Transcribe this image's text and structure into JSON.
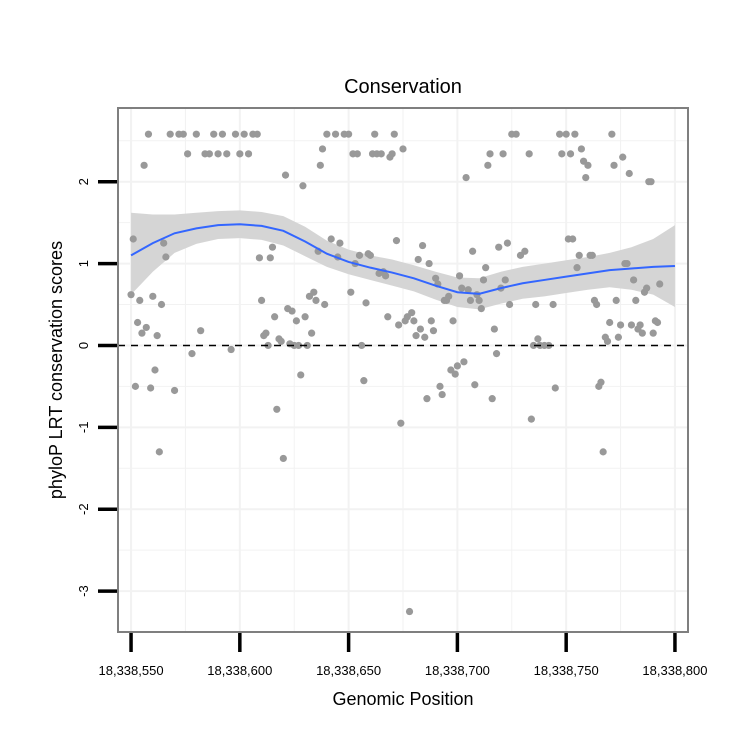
{
  "chart_data": {
    "type": "scatter",
    "title": "Conservation",
    "xlabel": "Genomic Position",
    "ylabel": "phyloP LRT conservation scores",
    "xlim": [
      18338544,
      18338806
    ],
    "ylim": [
      -3.5,
      2.9
    ],
    "x_ticks": [
      18338550,
      18338600,
      18338650,
      18338700,
      18338750,
      18338800
    ],
    "x_tick_labels": [
      "18,338,550",
      "18,338,600",
      "18,338,650",
      "18,338,700",
      "18,338,750",
      "18,338,800"
    ],
    "y_ticks": [
      -3,
      -2,
      -1,
      0,
      1,
      2
    ],
    "y_tick_labels": [
      "-3",
      "-2",
      "-1",
      "0",
      "1",
      "2"
    ],
    "reference_line_y": 0,
    "colors": {
      "points": "#999999",
      "smooth": "#3366ff",
      "band": "#d3d3d3",
      "grid": "#f2f2f2",
      "panel_border": "#7f7f7f",
      "reference_line": "#000000"
    },
    "points": [
      [
        18338550,
        0.62
      ],
      [
        18338551,
        1.3
      ],
      [
        18338552,
        -0.5
      ],
      [
        18338553,
        0.28
      ],
      [
        18338554,
        0.55
      ],
      [
        18338555,
        0.15
      ],
      [
        18338556,
        2.2
      ],
      [
        18338557,
        0.22
      ],
      [
        18338558,
        2.58
      ],
      [
        18338559,
        -0.52
      ],
      [
        18338560,
        0.6
      ],
      [
        18338561,
        -0.3
      ],
      [
        18338562,
        0.12
      ],
      [
        18338563,
        -1.3
      ],
      [
        18338564,
        0.5
      ],
      [
        18338565,
        1.25
      ],
      [
        18338566,
        1.08
      ],
      [
        18338568,
        2.58
      ],
      [
        18338570,
        -0.55
      ],
      [
        18338572,
        2.58
      ],
      [
        18338574,
        2.58
      ],
      [
        18338576,
        2.34
      ],
      [
        18338578,
        -0.1
      ],
      [
        18338580,
        2.58
      ],
      [
        18338582,
        0.18
      ],
      [
        18338584,
        2.34
      ],
      [
        18338586,
        2.34
      ],
      [
        18338588,
        2.58
      ],
      [
        18338590,
        2.34
      ],
      [
        18338592,
        2.58
      ],
      [
        18338594,
        2.34
      ],
      [
        18338596,
        -0.05
      ],
      [
        18338598,
        2.58
      ],
      [
        18338600,
        2.34
      ],
      [
        18338602,
        2.58
      ],
      [
        18338604,
        2.34
      ],
      [
        18338606,
        2.58
      ],
      [
        18338608,
        2.58
      ],
      [
        18338609,
        1.07
      ],
      [
        18338610,
        0.55
      ],
      [
        18338611,
        0.12
      ],
      [
        18338612,
        0.15
      ],
      [
        18338613,
        0.0
      ],
      [
        18338614,
        1.07
      ],
      [
        18338615,
        1.2
      ],
      [
        18338616,
        0.35
      ],
      [
        18338617,
        -0.78
      ],
      [
        18338618,
        0.08
      ],
      [
        18338619,
        0.05
      ],
      [
        18338620,
        -1.38
      ],
      [
        18338621,
        2.08
      ],
      [
        18338622,
        0.45
      ],
      [
        18338623,
        0.02
      ],
      [
        18338624,
        0.42
      ],
      [
        18338625,
        0.0
      ],
      [
        18338626,
        0.3
      ],
      [
        18338627,
        0.0
      ],
      [
        18338628,
        -0.36
      ],
      [
        18338629,
        1.95
      ],
      [
        18338630,
        0.35
      ],
      [
        18338631,
        0.0
      ],
      [
        18338632,
        0.6
      ],
      [
        18338633,
        0.15
      ],
      [
        18338634,
        0.65
      ],
      [
        18338635,
        0.55
      ],
      [
        18338636,
        1.15
      ],
      [
        18338637,
        2.2
      ],
      [
        18338638,
        2.4
      ],
      [
        18338639,
        0.5
      ],
      [
        18338640,
        2.58
      ],
      [
        18338642,
        1.3
      ],
      [
        18338644,
        2.58
      ],
      [
        18338645,
        1.08
      ],
      [
        18338646,
        1.25
      ],
      [
        18338648,
        2.58
      ],
      [
        18338650,
        2.58
      ],
      [
        18338651,
        0.65
      ],
      [
        18338652,
        2.34
      ],
      [
        18338653,
        1.0
      ],
      [
        18338654,
        2.34
      ],
      [
        18338655,
        1.1
      ],
      [
        18338656,
        0.0
      ],
      [
        18338657,
        -0.43
      ],
      [
        18338658,
        0.52
      ],
      [
        18338659,
        1.12
      ],
      [
        18338660,
        1.1
      ],
      [
        18338661,
        2.34
      ],
      [
        18338662,
        2.58
      ],
      [
        18338663,
        2.34
      ],
      [
        18338664,
        0.88
      ],
      [
        18338665,
        2.34
      ],
      [
        18338666,
        0.9
      ],
      [
        18338667,
        0.85
      ],
      [
        18338668,
        0.35
      ],
      [
        18338669,
        2.3
      ],
      [
        18338670,
        2.34
      ],
      [
        18338671,
        2.58
      ],
      [
        18338672,
        1.28
      ],
      [
        18338673,
        0.25
      ],
      [
        18338674,
        -0.95
      ],
      [
        18338675,
        2.4
      ],
      [
        18338676,
        0.3
      ],
      [
        18338677,
        0.35
      ],
      [
        18338678,
        -3.25
      ],
      [
        18338679,
        0.4
      ],
      [
        18338680,
        0.3
      ],
      [
        18338681,
        0.12
      ],
      [
        18338682,
        1.05
      ],
      [
        18338683,
        0.2
      ],
      [
        18338684,
        1.22
      ],
      [
        18338685,
        0.1
      ],
      [
        18338686,
        -0.65
      ],
      [
        18338687,
        1.0
      ],
      [
        18338688,
        0.3
      ],
      [
        18338689,
        0.18
      ],
      [
        18338690,
        0.82
      ],
      [
        18338691,
        0.75
      ],
      [
        18338692,
        -0.5
      ],
      [
        18338693,
        -0.6
      ],
      [
        18338694,
        0.55
      ],
      [
        18338695,
        0.55
      ],
      [
        18338696,
        0.6
      ],
      [
        18338697,
        -0.3
      ],
      [
        18338698,
        0.3
      ],
      [
        18338699,
        -0.35
      ],
      [
        18338700,
        -0.25
      ],
      [
        18338701,
        0.85
      ],
      [
        18338702,
        0.7
      ],
      [
        18338703,
        -0.2
      ],
      [
        18338704,
        2.05
      ],
      [
        18338705,
        0.68
      ],
      [
        18338706,
        0.55
      ],
      [
        18338707,
        1.15
      ],
      [
        18338708,
        -0.48
      ],
      [
        18338709,
        0.62
      ],
      [
        18338710,
        0.55
      ],
      [
        18338711,
        0.45
      ],
      [
        18338712,
        0.8
      ],
      [
        18338713,
        0.95
      ],
      [
        18338714,
        2.2
      ],
      [
        18338715,
        2.34
      ],
      [
        18338716,
        -0.65
      ],
      [
        18338717,
        0.2
      ],
      [
        18338718,
        -0.1
      ],
      [
        18338719,
        1.2
      ],
      [
        18338720,
        0.7
      ],
      [
        18338721,
        2.34
      ],
      [
        18338722,
        0.8
      ],
      [
        18338723,
        1.25
      ],
      [
        18338724,
        0.5
      ],
      [
        18338725,
        2.58
      ],
      [
        18338727,
        2.58
      ],
      [
        18338729,
        1.1
      ],
      [
        18338731,
        1.15
      ],
      [
        18338733,
        2.34
      ],
      [
        18338734,
        -0.9
      ],
      [
        18338735,
        0.0
      ],
      [
        18338736,
        0.5
      ],
      [
        18338737,
        0.08
      ],
      [
        18338738,
        0.0
      ],
      [
        18338740,
        0.0
      ],
      [
        18338742,
        0.0
      ],
      [
        18338744,
        0.5
      ],
      [
        18338745,
        -0.52
      ],
      [
        18338747,
        2.58
      ],
      [
        18338748,
        2.34
      ],
      [
        18338750,
        2.58
      ],
      [
        18338751,
        1.3
      ],
      [
        18338752,
        2.34
      ],
      [
        18338753,
        1.3
      ],
      [
        18338754,
        2.58
      ],
      [
        18338755,
        0.95
      ],
      [
        18338756,
        1.1
      ],
      [
        18338757,
        2.4
      ],
      [
        18338758,
        2.25
      ],
      [
        18338759,
        2.05
      ],
      [
        18338760,
        2.2
      ],
      [
        18338761,
        1.1
      ],
      [
        18338762,
        1.1
      ],
      [
        18338763,
        0.55
      ],
      [
        18338764,
        0.5
      ],
      [
        18338765,
        -0.5
      ],
      [
        18338766,
        -0.45
      ],
      [
        18338767,
        -1.3
      ],
      [
        18338768,
        0.1
      ],
      [
        18338769,
        0.05
      ],
      [
        18338770,
        0.28
      ],
      [
        18338771,
        2.58
      ],
      [
        18338772,
        2.2
      ],
      [
        18338773,
        0.55
      ],
      [
        18338774,
        0.1
      ],
      [
        18338775,
        0.25
      ],
      [
        18338776,
        2.3
      ],
      [
        18338777,
        1.0
      ],
      [
        18338778,
        1.0
      ],
      [
        18338779,
        2.1
      ],
      [
        18338780,
        0.25
      ],
      [
        18338781,
        0.8
      ],
      [
        18338782,
        0.55
      ],
      [
        18338783,
        0.2
      ],
      [
        18338784,
        0.25
      ],
      [
        18338785,
        0.15
      ],
      [
        18338786,
        0.65
      ],
      [
        18338787,
        0.7
      ],
      [
        18338788,
        2.0
      ],
      [
        18338789,
        2.0
      ],
      [
        18338790,
        0.15
      ],
      [
        18338791,
        0.3
      ],
      [
        18338792,
        0.28
      ],
      [
        18338793,
        0.75
      ]
    ],
    "smooth": [
      [
        18338550,
        1.1
      ],
      [
        18338560,
        1.25
      ],
      [
        18338570,
        1.37
      ],
      [
        18338580,
        1.43
      ],
      [
        18338590,
        1.47
      ],
      [
        18338600,
        1.48
      ],
      [
        18338610,
        1.46
      ],
      [
        18338620,
        1.4
      ],
      [
        18338630,
        1.27
      ],
      [
        18338640,
        1.12
      ],
      [
        18338650,
        1.02
      ],
      [
        18338660,
        0.95
      ],
      [
        18338670,
        0.89
      ],
      [
        18338680,
        0.82
      ],
      [
        18338690,
        0.73
      ],
      [
        18338700,
        0.65
      ],
      [
        18338710,
        0.63
      ],
      [
        18338720,
        0.7
      ],
      [
        18338730,
        0.76
      ],
      [
        18338740,
        0.8
      ],
      [
        18338750,
        0.84
      ],
      [
        18338760,
        0.88
      ],
      [
        18338770,
        0.92
      ],
      [
        18338780,
        0.94
      ],
      [
        18338790,
        0.96
      ],
      [
        18338800,
        0.97
      ]
    ],
    "band_upper": [
      [
        18338550,
        1.62
      ],
      [
        18338560,
        1.6
      ],
      [
        18338570,
        1.6
      ],
      [
        18338580,
        1.62
      ],
      [
        18338590,
        1.64
      ],
      [
        18338600,
        1.65
      ],
      [
        18338610,
        1.63
      ],
      [
        18338620,
        1.58
      ],
      [
        18338630,
        1.45
      ],
      [
        18338640,
        1.28
      ],
      [
        18338650,
        1.17
      ],
      [
        18338660,
        1.1
      ],
      [
        18338670,
        1.05
      ],
      [
        18338680,
        0.98
      ],
      [
        18338690,
        0.9
      ],
      [
        18338700,
        0.83
      ],
      [
        18338710,
        0.82
      ],
      [
        18338720,
        0.9
      ],
      [
        18338730,
        0.96
      ],
      [
        18338740,
        1.0
      ],
      [
        18338750,
        1.04
      ],
      [
        18338760,
        1.08
      ],
      [
        18338770,
        1.13
      ],
      [
        18338780,
        1.2
      ],
      [
        18338790,
        1.3
      ],
      [
        18338800,
        1.47
      ]
    ],
    "band_lower": [
      [
        18338550,
        0.62
      ],
      [
        18338560,
        0.9
      ],
      [
        18338570,
        1.13
      ],
      [
        18338580,
        1.24
      ],
      [
        18338590,
        1.3
      ],
      [
        18338600,
        1.31
      ],
      [
        18338610,
        1.29
      ],
      [
        18338620,
        1.22
      ],
      [
        18338630,
        1.09
      ],
      [
        18338640,
        0.96
      ],
      [
        18338650,
        0.87
      ],
      [
        18338660,
        0.8
      ],
      [
        18338670,
        0.73
      ],
      [
        18338680,
        0.66
      ],
      [
        18338690,
        0.56
      ],
      [
        18338700,
        0.47
      ],
      [
        18338710,
        0.44
      ],
      [
        18338720,
        0.51
      ],
      [
        18338730,
        0.57
      ],
      [
        18338740,
        0.6
      ],
      [
        18338750,
        0.64
      ],
      [
        18338760,
        0.68
      ],
      [
        18338770,
        0.71
      ],
      [
        18338780,
        0.68
      ],
      [
        18338790,
        0.62
      ],
      [
        18338800,
        0.47
      ]
    ]
  }
}
